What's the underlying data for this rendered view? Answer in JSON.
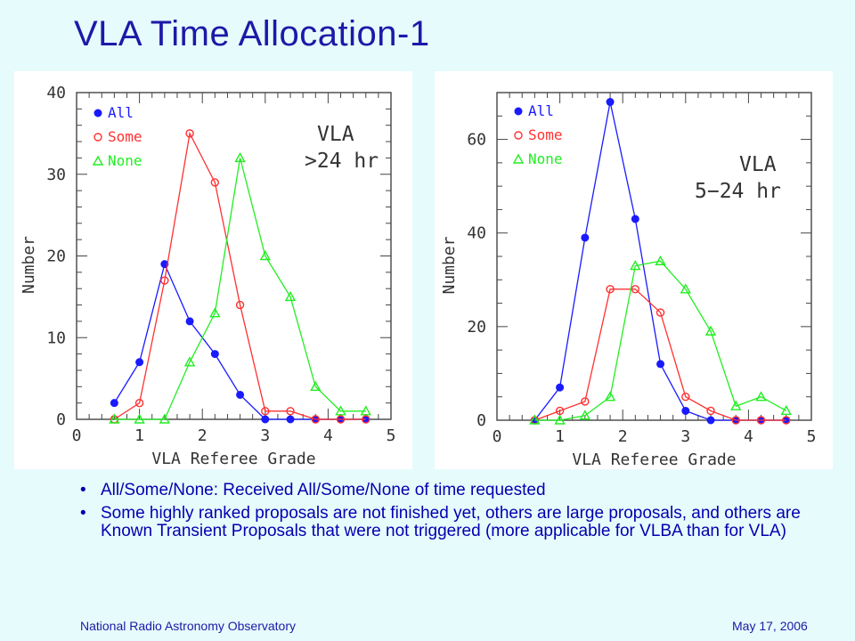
{
  "slide": {
    "title": "VLA Time Allocation-1",
    "bullets": [
      "All/Some/None: Received All/Some/None of time requested",
      "Some highly ranked proposals are not finished yet, others are large proposals, and others are Known Transient Proposals that were not triggered (more applicable for VLBA than for VLA)"
    ],
    "bullet_symbol": "•",
    "footer_left": "National Radio Astronomy Observatory",
    "footer_right": "May 17, 2006"
  },
  "colors": {
    "background": "#e6fbfb",
    "title": "#1a1aa8",
    "all": "#1a1aff",
    "some": "#ff3030",
    "none": "#22ee22"
  },
  "chart_data": [
    {
      "type": "line",
      "xlabel": "VLA Referee Grade",
      "ylabel": "Number",
      "xlim": [
        0,
        5
      ],
      "ylim": [
        0,
        40
      ],
      "xticks": [
        0,
        1,
        2,
        3,
        4,
        5
      ],
      "yticks": [
        0,
        10,
        20,
        30,
        40
      ],
      "annotation": [
        "VLA",
        ">24 hr"
      ],
      "legend_position": "top-left",
      "x": [
        0.6,
        1.0,
        1.4,
        1.8,
        2.2,
        2.6,
        3.0,
        3.4,
        3.8,
        4.2,
        4.6
      ],
      "series": [
        {
          "name": "All",
          "marker": "filled-circle",
          "color": "#1a1aff",
          "values": [
            2,
            7,
            19,
            12,
            8,
            3,
            0,
            0,
            0,
            0,
            0
          ]
        },
        {
          "name": "Some",
          "marker": "open-circle",
          "color": "#ff3030",
          "values": [
            0,
            2,
            17,
            35,
            29,
            14,
            1,
            1,
            0,
            0,
            0
          ]
        },
        {
          "name": "None",
          "marker": "open-triangle",
          "color": "#22ee22",
          "values": [
            0,
            0,
            0,
            7,
            13,
            32,
            20,
            15,
            4,
            1,
            1
          ]
        }
      ]
    },
    {
      "type": "line",
      "xlabel": "VLA Referee Grade",
      "ylabel": "Number",
      "xlim": [
        0,
        5
      ],
      "ylim": [
        0,
        70
      ],
      "xticks": [
        0,
        1,
        2,
        3,
        4,
        5
      ],
      "yticks": [
        0,
        20,
        40,
        60
      ],
      "annotation": [
        "VLA",
        "5−24 hr"
      ],
      "legend_position": "top-left",
      "x": [
        0.6,
        1.0,
        1.4,
        1.8,
        2.2,
        2.6,
        3.0,
        3.4,
        3.8,
        4.2,
        4.6
      ],
      "series": [
        {
          "name": "All",
          "marker": "filled-circle",
          "color": "#1a1aff",
          "values": [
            0,
            7,
            39,
            68,
            43,
            12,
            2,
            0,
            0,
            0,
            0
          ]
        },
        {
          "name": "Some",
          "marker": "open-circle",
          "color": "#ff3030",
          "values": [
            0,
            2,
            4,
            28,
            28,
            23,
            5,
            2,
            0,
            0,
            0
          ]
        },
        {
          "name": "None",
          "marker": "open-triangle",
          "color": "#22ee22",
          "values": [
            0,
            0,
            1,
            5,
            33,
            34,
            28,
            19,
            3,
            5,
            2
          ]
        }
      ]
    }
  ]
}
